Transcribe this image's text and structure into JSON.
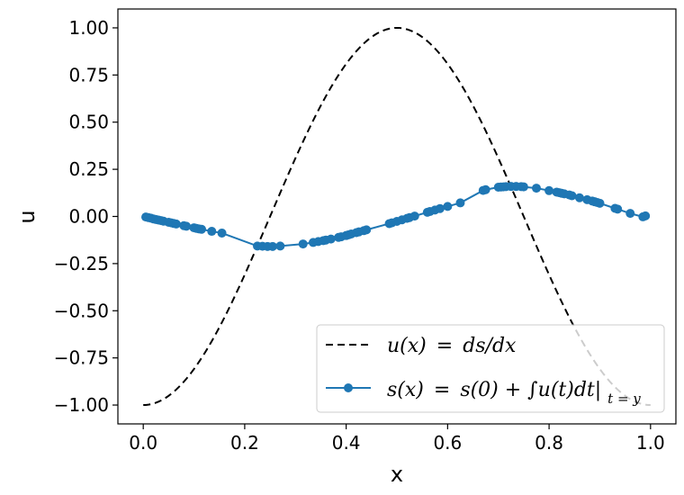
{
  "chart_data": {
    "type": "line",
    "title": "",
    "xlabel": "x",
    "ylabel": "u",
    "xlim": [
      -0.05,
      1.05
    ],
    "ylim": [
      -1.1,
      1.1
    ],
    "xticks": [
      0.0,
      0.2,
      0.4,
      0.6,
      0.8,
      1.0
    ],
    "xtick_labels": [
      "0.0",
      "0.2",
      "0.4",
      "0.6",
      "0.8",
      "1.0"
    ],
    "yticks": [
      1.0,
      0.75,
      0.5,
      0.25,
      0.0,
      -0.25,
      -0.5,
      -0.75,
      -1.0
    ],
    "ytick_labels": [
      "1.00",
      "0.75",
      "0.50",
      "0.25",
      "0.00",
      "−0.25",
      "−0.50",
      "−0.75",
      "−1.00"
    ],
    "grid": false,
    "legend_position": "lower-right",
    "series": [
      {
        "name": "u(x) = ds/dx",
        "style": "dashed",
        "color": "#000000",
        "function": "-cos(2*pi*x)",
        "x_range": [
          0.0,
          1.0
        ]
      },
      {
        "name": "s(x) = s(0) + ∫u(t)dt|t=y",
        "style": "line-with-markers",
        "color": "#1f77b4",
        "x": [
          0.005,
          0.01,
          0.015,
          0.02,
          0.025,
          0.03,
          0.035,
          0.04,
          0.05,
          0.055,
          0.06,
          0.065,
          0.08,
          0.085,
          0.1,
          0.105,
          0.11,
          0.115,
          0.135,
          0.155,
          0.225,
          0.235,
          0.245,
          0.255,
          0.27,
          0.315,
          0.335,
          0.345,
          0.355,
          0.36,
          0.37,
          0.385,
          0.39,
          0.4,
          0.405,
          0.41,
          0.42,
          0.425,
          0.435,
          0.44,
          0.485,
          0.49,
          0.5,
          0.51,
          0.52,
          0.525,
          0.535,
          0.56,
          0.565,
          0.575,
          0.585,
          0.6,
          0.625,
          0.67,
          0.675,
          0.7,
          0.705,
          0.71,
          0.715,
          0.725,
          0.735,
          0.745,
          0.75,
          0.775,
          0.8,
          0.815,
          0.82,
          0.825,
          0.83,
          0.84,
          0.845,
          0.86,
          0.875,
          0.885,
          0.89,
          0.895,
          0.9,
          0.93,
          0.935,
          0.96,
          0.985,
          0.99
        ],
        "y": [
          -0.003,
          -0.006,
          -0.009,
          -0.013,
          -0.016,
          -0.019,
          -0.022,
          -0.025,
          -0.031,
          -0.034,
          -0.037,
          -0.04,
          -0.049,
          -0.052,
          -0.06,
          -0.063,
          -0.066,
          -0.068,
          -0.079,
          -0.088,
          -0.157,
          -0.158,
          -0.159,
          -0.159,
          -0.157,
          -0.146,
          -0.138,
          -0.133,
          -0.128,
          -0.125,
          -0.12,
          -0.111,
          -0.108,
          -0.101,
          -0.097,
          -0.093,
          -0.086,
          -0.082,
          -0.075,
          -0.071,
          -0.038,
          -0.034,
          -0.026,
          -0.018,
          -0.01,
          -0.006,
          0.002,
          0.022,
          0.026,
          0.034,
          0.042,
          0.053,
          0.072,
          0.138,
          0.142,
          0.155,
          0.156,
          0.157,
          0.158,
          0.159,
          0.159,
          0.158,
          0.157,
          0.15,
          0.137,
          0.129,
          0.126,
          0.123,
          0.12,
          0.114,
          0.11,
          0.099,
          0.089,
          0.082,
          0.078,
          0.074,
          0.07,
          0.043,
          0.039,
          0.016,
          -0.002,
          0.003
        ]
      }
    ],
    "legend": [
      {
        "label_left": "u(x)",
        "label_eq": "=",
        "label_right": "ds/dx"
      },
      {
        "label_left": "s(x)",
        "label_eq": "=",
        "label_right": "s(0) + ∫u(t)dt|",
        "label_sub": "t = y"
      }
    ]
  }
}
